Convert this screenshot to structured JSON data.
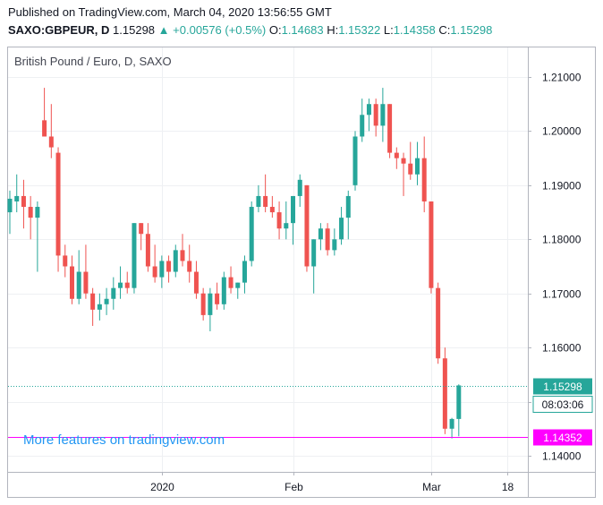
{
  "header": {
    "published": "Published on TradingView.com, March 04, 2020 13:56:55 GMT",
    "symbol": "SAXO:GBPEUR, D",
    "last": "1.15298",
    "change": "+0.00576 (+0.5%)",
    "o_label": "O:",
    "o_value": "1.14683",
    "h_label": "H:",
    "h_value": "1.15322",
    "l_label": "L:",
    "l_value": "1.14358",
    "c_label": "C:",
    "c_value": "1.15298"
  },
  "watermark": "More features on tradingview.com",
  "colors": {
    "up": "#26a69a",
    "down": "#ef5350",
    "grid": "#eef0f3",
    "last_price": "#26a69a",
    "low_line": "#ff00ff",
    "axis_text": "#131722"
  },
  "chart_data": {
    "type": "candlestick",
    "title": "British Pound / Euro, D, SAXO",
    "ylim": [
      1.135,
      1.215
    ],
    "y_ticks": [
      "1.14000",
      "1.15000",
      "1.16000",
      "1.17000",
      "1.18000",
      "1.19000",
      "1.20000",
      "1.21000"
    ],
    "x_tick_labels": [
      {
        "label": "2020",
        "index": 22
      },
      {
        "label": "Feb",
        "index": 41
      },
      {
        "label": "Mar",
        "index": 61
      },
      {
        "label": "18",
        "index": 72
      }
    ],
    "last_price": "1.15298",
    "countdown": "08:03:06",
    "low_marker": "1.14352",
    "candles": [
      {
        "o": 1.185,
        "h": 1.189,
        "l": 1.181,
        "c": 1.1875
      },
      {
        "o": 1.187,
        "h": 1.192,
        "l": 1.185,
        "c": 1.188
      },
      {
        "o": 1.188,
        "h": 1.191,
        "l": 1.182,
        "c": 1.186
      },
      {
        "o": 1.186,
        "h": 1.188,
        "l": 1.18,
        "c": 1.184
      },
      {
        "o": 1.184,
        "h": 1.187,
        "l": 1.174,
        "c": 1.186
      },
      {
        "o": 1.202,
        "h": 1.208,
        "l": 1.199,
        "c": 1.199
      },
      {
        "o": 1.199,
        "h": 1.205,
        "l": 1.195,
        "c": 1.197
      },
      {
        "o": 1.196,
        "h": 1.197,
        "l": 1.174,
        "c": 1.177
      },
      {
        "o": 1.177,
        "h": 1.179,
        "l": 1.173,
        "c": 1.175
      },
      {
        "o": 1.175,
        "h": 1.177,
        "l": 1.168,
        "c": 1.169
      },
      {
        "o": 1.169,
        "h": 1.178,
        "l": 1.168,
        "c": 1.174
      },
      {
        "o": 1.174,
        "h": 1.179,
        "l": 1.169,
        "c": 1.17
      },
      {
        "o": 1.17,
        "h": 1.171,
        "l": 1.164,
        "c": 1.167
      },
      {
        "o": 1.167,
        "h": 1.17,
        "l": 1.165,
        "c": 1.168
      },
      {
        "o": 1.168,
        "h": 1.171,
        "l": 1.166,
        "c": 1.169
      },
      {
        "o": 1.169,
        "h": 1.173,
        "l": 1.167,
        "c": 1.171
      },
      {
        "o": 1.171,
        "h": 1.175,
        "l": 1.169,
        "c": 1.172
      },
      {
        "o": 1.172,
        "h": 1.174,
        "l": 1.17,
        "c": 1.171
      },
      {
        "o": 1.171,
        "h": 1.183,
        "l": 1.17,
        "c": 1.183
      },
      {
        "o": 1.183,
        "h": 1.183,
        "l": 1.178,
        "c": 1.181
      },
      {
        "o": 1.181,
        "h": 1.183,
        "l": 1.174,
        "c": 1.175
      },
      {
        "o": 1.175,
        "h": 1.179,
        "l": 1.172,
        "c": 1.173
      },
      {
        "o": 1.173,
        "h": 1.177,
        "l": 1.171,
        "c": 1.176
      },
      {
        "o": 1.176,
        "h": 1.177,
        "l": 1.172,
        "c": 1.174
      },
      {
        "o": 1.174,
        "h": 1.179,
        "l": 1.173,
        "c": 1.178
      },
      {
        "o": 1.178,
        "h": 1.181,
        "l": 1.175,
        "c": 1.176
      },
      {
        "o": 1.176,
        "h": 1.179,
        "l": 1.172,
        "c": 1.174
      },
      {
        "o": 1.174,
        "h": 1.176,
        "l": 1.169,
        "c": 1.17
      },
      {
        "o": 1.17,
        "h": 1.171,
        "l": 1.165,
        "c": 1.166
      },
      {
        "o": 1.166,
        "h": 1.171,
        "l": 1.163,
        "c": 1.17
      },
      {
        "o": 1.17,
        "h": 1.172,
        "l": 1.167,
        "c": 1.168
      },
      {
        "o": 1.168,
        "h": 1.174,
        "l": 1.167,
        "c": 1.173
      },
      {
        "o": 1.173,
        "h": 1.175,
        "l": 1.17,
        "c": 1.171
      },
      {
        "o": 1.171,
        "h": 1.172,
        "l": 1.169,
        "c": 1.172
      },
      {
        "o": 1.172,
        "h": 1.177,
        "l": 1.17,
        "c": 1.176
      },
      {
        "o": 1.176,
        "h": 1.187,
        "l": 1.175,
        "c": 1.186
      },
      {
        "o": 1.186,
        "h": 1.19,
        "l": 1.185,
        "c": 1.188
      },
      {
        "o": 1.188,
        "h": 1.192,
        "l": 1.185,
        "c": 1.186
      },
      {
        "o": 1.186,
        "h": 1.188,
        "l": 1.184,
        "c": 1.185
      },
      {
        "o": 1.185,
        "h": 1.187,
        "l": 1.18,
        "c": 1.182
      },
      {
        "o": 1.182,
        "h": 1.187,
        "l": 1.18,
        "c": 1.183
      },
      {
        "o": 1.183,
        "h": 1.188,
        "l": 1.179,
        "c": 1.188
      },
      {
        "o": 1.188,
        "h": 1.192,
        "l": 1.186,
        "c": 1.191
      },
      {
        "o": 1.19,
        "h": 1.19,
        "l": 1.174,
        "c": 1.175
      },
      {
        "o": 1.175,
        "h": 1.18,
        "l": 1.17,
        "c": 1.18
      },
      {
        "o": 1.18,
        "h": 1.183,
        "l": 1.178,
        "c": 1.182
      },
      {
        "o": 1.182,
        "h": 1.183,
        "l": 1.177,
        "c": 1.178
      },
      {
        "o": 1.178,
        "h": 1.182,
        "l": 1.177,
        "c": 1.18
      },
      {
        "o": 1.18,
        "h": 1.186,
        "l": 1.179,
        "c": 1.184
      },
      {
        "o": 1.184,
        "h": 1.189,
        "l": 1.18,
        "c": 1.188
      },
      {
        "o": 1.19,
        "h": 1.2,
        "l": 1.189,
        "c": 1.199
      },
      {
        "o": 1.199,
        "h": 1.206,
        "l": 1.198,
        "c": 1.203
      },
      {
        "o": 1.203,
        "h": 1.206,
        "l": 1.2,
        "c": 1.205
      },
      {
        "o": 1.205,
        "h": 1.206,
        "l": 1.199,
        "c": 1.201
      },
      {
        "o": 1.201,
        "h": 1.208,
        "l": 1.198,
        "c": 1.205
      },
      {
        "o": 1.205,
        "h": 1.205,
        "l": 1.195,
        "c": 1.196
      },
      {
        "o": 1.196,
        "h": 1.197,
        "l": 1.193,
        "c": 1.195
      },
      {
        "o": 1.195,
        "h": 1.196,
        "l": 1.188,
        "c": 1.194
      },
      {
        "o": 1.194,
        "h": 1.198,
        "l": 1.191,
        "c": 1.192
      },
      {
        "o": 1.192,
        "h": 1.198,
        "l": 1.19,
        "c": 1.195
      },
      {
        "o": 1.195,
        "h": 1.199,
        "l": 1.185,
        "c": 1.187
      },
      {
        "o": 1.187,
        "h": 1.187,
        "l": 1.17,
        "c": 1.171
      },
      {
        "o": 1.171,
        "h": 1.172,
        "l": 1.157,
        "c": 1.158
      },
      {
        "o": 1.158,
        "h": 1.16,
        "l": 1.144,
        "c": 1.145
      },
      {
        "o": 1.145,
        "h": 1.147,
        "l": 1.1432,
        "c": 1.1468
      },
      {
        "o": 1.1468,
        "h": 1.1532,
        "l": 1.1436,
        "c": 1.153
      }
    ]
  }
}
